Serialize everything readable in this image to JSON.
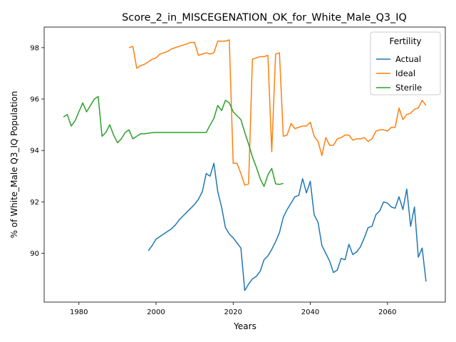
{
  "chart_data": {
    "type": "line",
    "title": "Score_2_in_MISCEGENATION_OK_for_White_Male_Q3_IQ",
    "xlabel": "Years",
    "ylabel": "% of White_Male Q3_IQ Population",
    "xlim": [
      1971,
      2075
    ],
    "ylim": [
      88.1,
      98.8
    ],
    "xticks": [
      1980,
      2000,
      2020,
      2040,
      2060
    ],
    "yticks": [
      90,
      92,
      94,
      96,
      98
    ],
    "grid": false,
    "legend": {
      "title": "Fertility",
      "placement": "top-right"
    },
    "colors": {
      "Actual": "#1f77b4",
      "Ideal": "#ff7f0e",
      "Sterile": "#2ca02c"
    },
    "series": [
      {
        "name": "Actual",
        "x": [
          1998,
          1999,
          2000,
          2001,
          2002,
          2003,
          2004,
          2005,
          2006,
          2007,
          2008,
          2009,
          2010,
          2011,
          2012,
          2013,
          2014,
          2015,
          2016,
          2017,
          2018,
          2019,
          2020,
          2021,
          2022,
          2023,
          2024,
          2025,
          2026,
          2027,
          2028,
          2029,
          2030,
          2031,
          2032,
          2033,
          2034,
          2035,
          2036,
          2037,
          2038,
          2039,
          2040,
          2041,
          2042,
          2043,
          2044,
          2045,
          2046,
          2047,
          2048,
          2049,
          2050,
          2051,
          2052,
          2053,
          2054,
          2055,
          2056,
          2057,
          2058,
          2059,
          2060,
          2061,
          2062,
          2063,
          2064,
          2065,
          2066,
          2067,
          2068,
          2069,
          2070
        ],
        "values": [
          90.1,
          90.3,
          90.55,
          90.65,
          90.75,
          90.85,
          90.95,
          91.1,
          91.3,
          91.45,
          91.6,
          91.75,
          91.9,
          92.1,
          92.4,
          93.1,
          93.0,
          93.5,
          92.4,
          91.8,
          91.0,
          90.75,
          90.6,
          90.4,
          90.2,
          88.55,
          88.8,
          89.0,
          89.1,
          89.3,
          89.75,
          89.9,
          90.15,
          90.45,
          90.8,
          91.4,
          91.7,
          91.95,
          92.2,
          92.25,
          92.9,
          92.35,
          92.8,
          91.5,
          91.2,
          90.3,
          90.0,
          89.7,
          89.25,
          89.35,
          89.8,
          89.75,
          90.35,
          89.95,
          90.05,
          90.25,
          90.6,
          91.0,
          91.05,
          91.5,
          91.65,
          92.0,
          91.95,
          91.8,
          91.75,
          92.2,
          91.7,
          92.5,
          91.05,
          91.8,
          89.85,
          90.2,
          88.9
        ]
      },
      {
        "name": "Ideal",
        "x": [
          1993,
          1994,
          1995,
          1996,
          1997,
          1998,
          1999,
          2000,
          2001,
          2002,
          2003,
          2004,
          2005,
          2006,
          2007,
          2008,
          2009,
          2010,
          2011,
          2012,
          2013,
          2014,
          2015,
          2016,
          2017,
          2018,
          2019,
          2020,
          2021,
          2022,
          2023,
          2024,
          2025,
          2026,
          2027,
          2028,
          2029,
          2030,
          2031,
          2032,
          2033,
          2034,
          2035,
          2036,
          2037,
          2038,
          2039,
          2040,
          2041,
          2042,
          2043,
          2044,
          2045,
          2046,
          2047,
          2048,
          2049,
          2050,
          2051,
          2052,
          2053,
          2054,
          2055,
          2056,
          2057,
          2058,
          2059,
          2060,
          2061,
          2062,
          2063,
          2064,
          2065,
          2066,
          2067,
          2068,
          2069,
          2070
        ],
        "values": [
          98.0,
          98.05,
          97.2,
          97.3,
          97.35,
          97.45,
          97.55,
          97.6,
          97.75,
          97.8,
          97.85,
          97.95,
          98.0,
          98.05,
          98.1,
          98.15,
          98.2,
          98.2,
          97.7,
          97.75,
          97.8,
          97.75,
          97.8,
          98.25,
          98.25,
          98.25,
          98.3,
          93.5,
          93.5,
          93.1,
          92.65,
          92.7,
          97.55,
          97.6,
          97.65,
          97.65,
          97.7,
          93.95,
          97.75,
          97.8,
          94.55,
          94.6,
          95.05,
          94.85,
          94.9,
          94.95,
          94.95,
          95.1,
          94.55,
          94.35,
          93.8,
          94.5,
          94.2,
          94.2,
          94.45,
          94.5,
          94.6,
          94.6,
          94.4,
          94.45,
          94.45,
          94.5,
          94.35,
          94.45,
          94.75,
          94.8,
          94.8,
          94.75,
          94.9,
          94.9,
          95.65,
          95.2,
          95.4,
          95.45,
          95.6,
          95.65,
          95.95,
          95.75
        ]
      },
      {
        "name": "Sterile",
        "x": [
          1976,
          1977,
          1978,
          1979,
          1980,
          1981,
          1982,
          1983,
          1984,
          1985,
          1986,
          1987,
          1988,
          1989,
          1990,
          1991,
          1992,
          1993,
          1994,
          1995,
          1996,
          1997,
          1998,
          1999,
          2000,
          2001,
          2002,
          2003,
          2004,
          2005,
          2006,
          2007,
          2008,
          2009,
          2010,
          2011,
          2012,
          2013,
          2014,
          2015,
          2016,
          2017,
          2018,
          2019,
          2020,
          2021,
          2022,
          2023,
          2024,
          2025,
          2026,
          2027,
          2028,
          2029,
          2030,
          2031,
          2032,
          2033
        ],
        "values": [
          95.3,
          95.4,
          94.95,
          95.15,
          95.5,
          95.85,
          95.5,
          95.75,
          96.0,
          96.1,
          94.55,
          94.7,
          95.0,
          94.6,
          94.3,
          94.45,
          94.7,
          94.8,
          94.45,
          94.55,
          94.65,
          94.65,
          94.67,
          94.69,
          94.7,
          94.7,
          94.7,
          94.7,
          94.7,
          94.7,
          94.7,
          94.7,
          94.7,
          94.7,
          94.7,
          94.7,
          94.7,
          94.7,
          94.98,
          95.25,
          95.75,
          95.55,
          95.95,
          95.85,
          95.5,
          95.35,
          95.2,
          94.7,
          94.25,
          93.75,
          93.35,
          92.9,
          92.6,
          93.05,
          93.3,
          92.7,
          92.68,
          92.72
        ]
      }
    ]
  }
}
